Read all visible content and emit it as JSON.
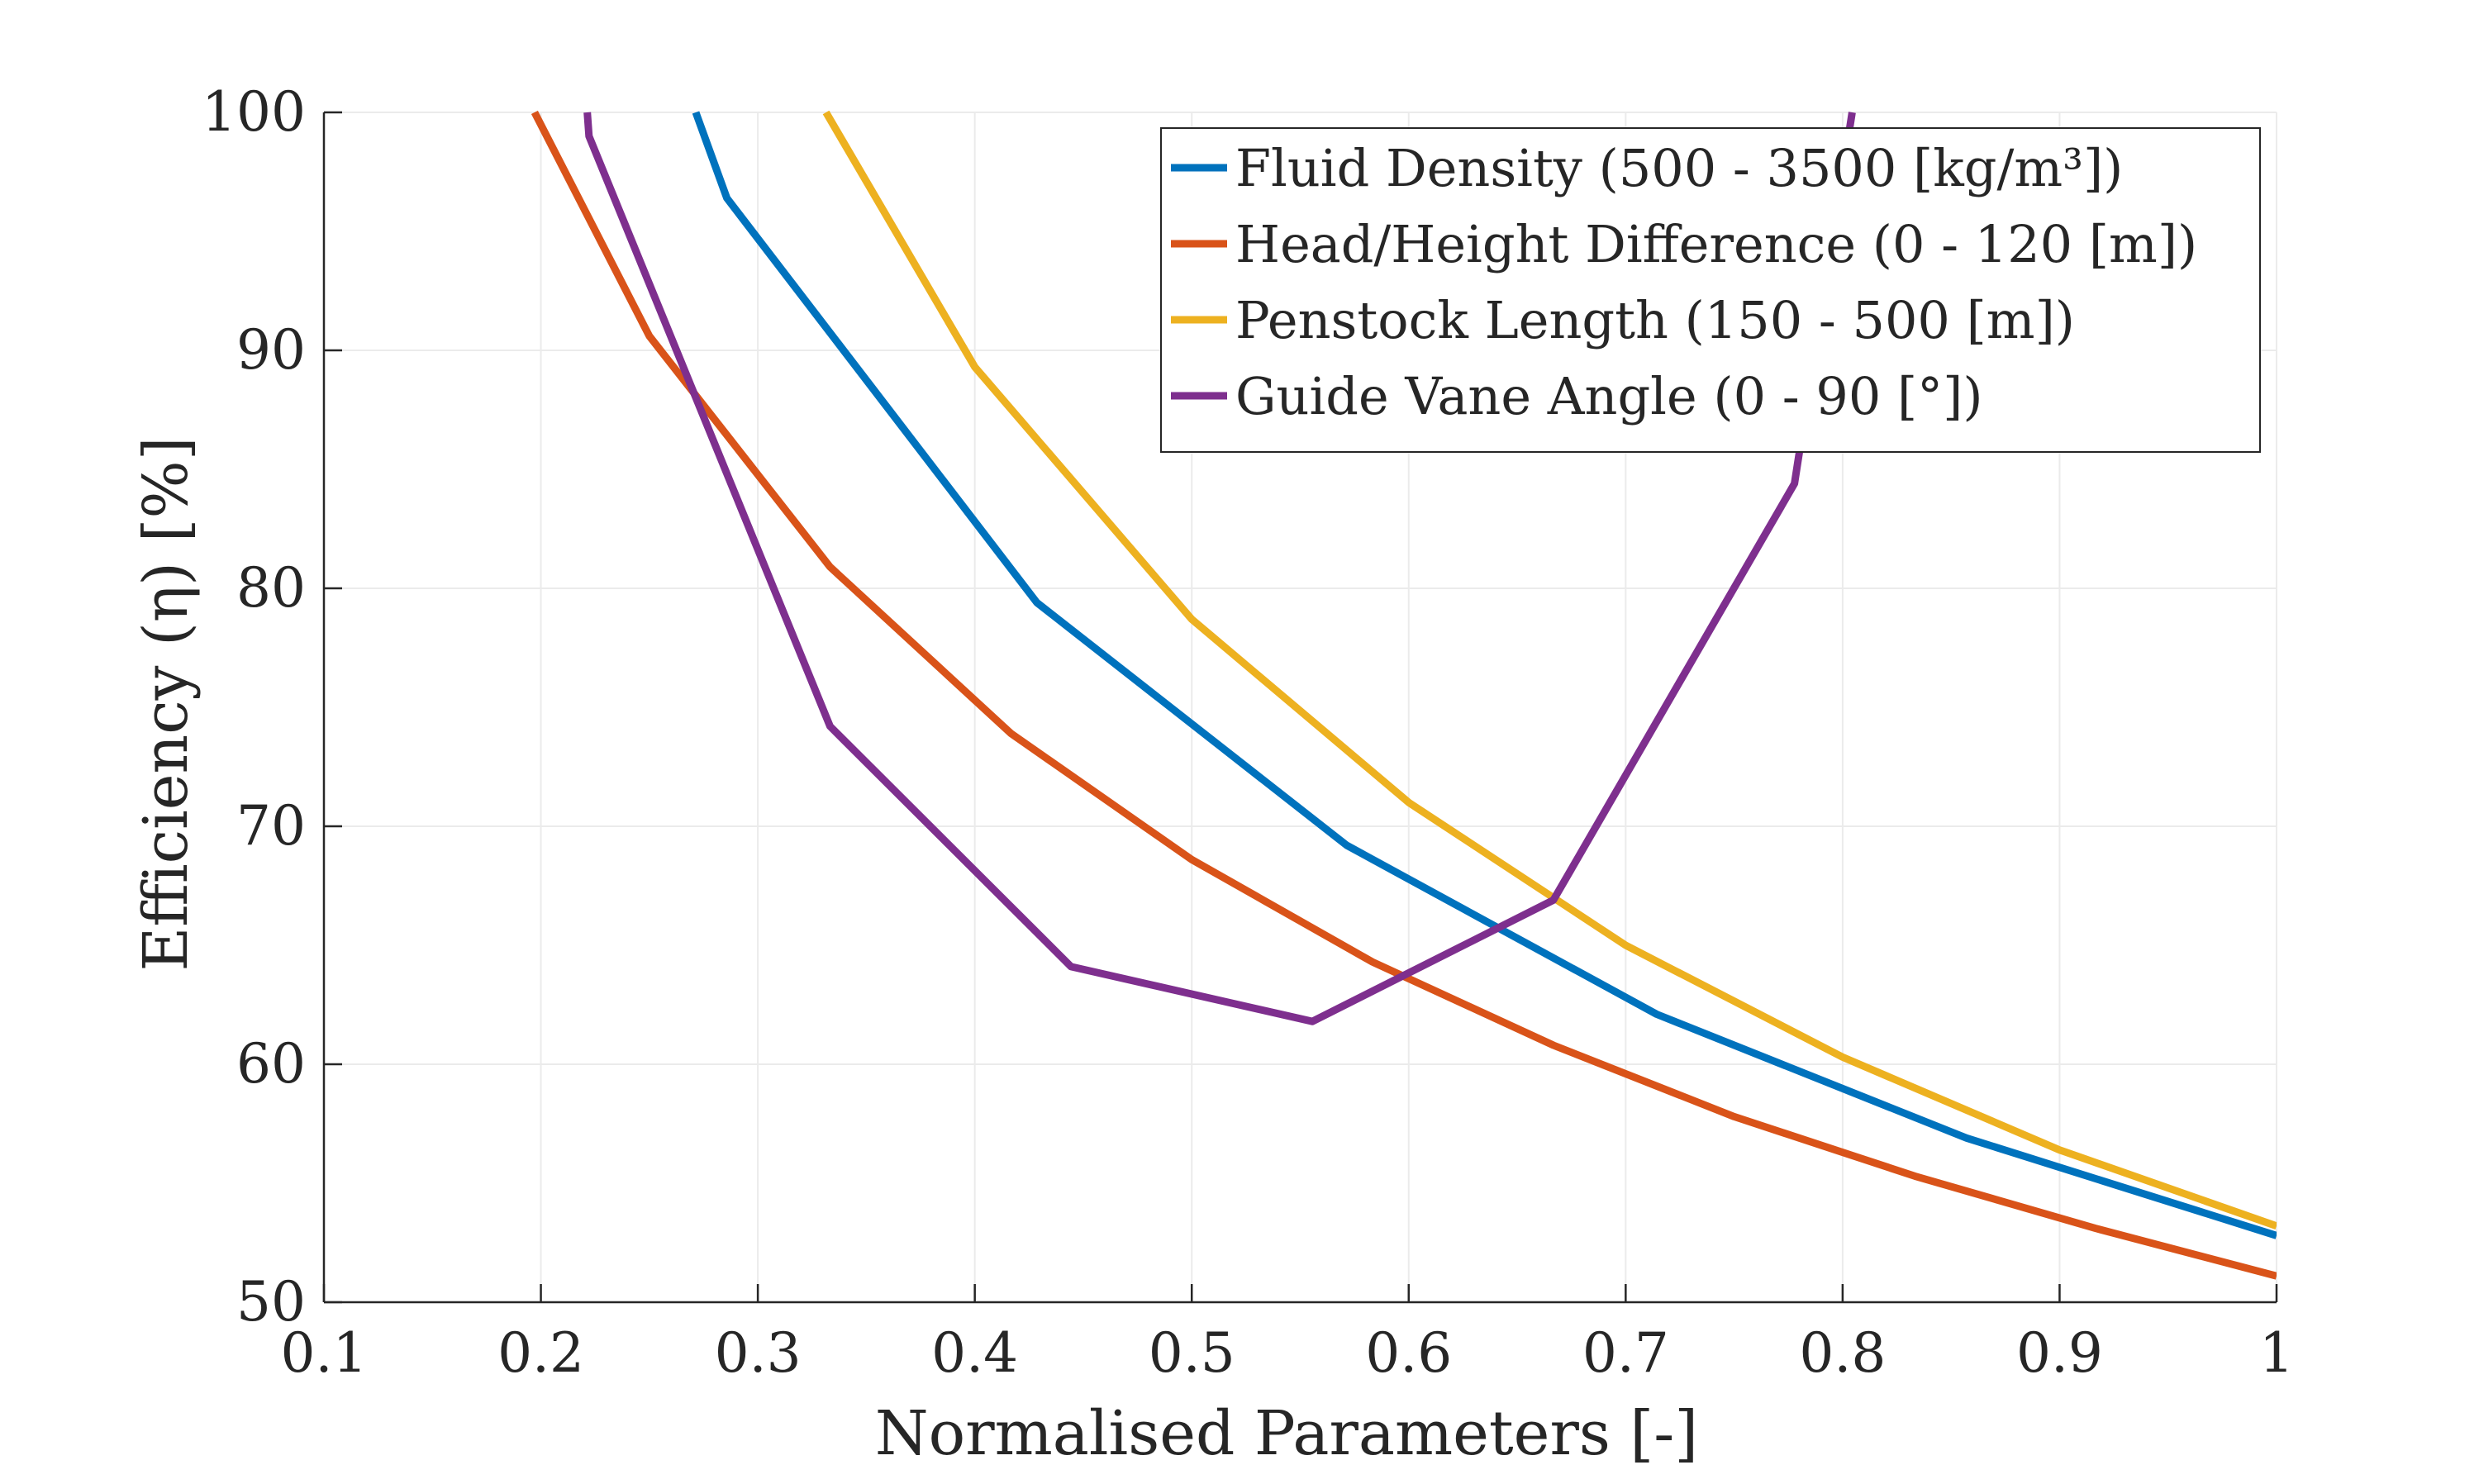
{
  "chart_data": {
    "type": "line",
    "title": "",
    "xlabel": "Normalised Parameters [-]",
    "ylabel": "Efficiency (η) [%]",
    "xlim": [
      0.1,
      1
    ],
    "ylim": [
      50,
      100
    ],
    "xticks": [
      "0.1",
      "0.2",
      "0.3",
      "0.4",
      "0.5",
      "0.6",
      "0.7",
      "0.8",
      "0.9",
      "1"
    ],
    "yticks": [
      "50",
      "60",
      "70",
      "80",
      "90",
      "100"
    ],
    "grid": true,
    "legend_position": "top-right",
    "series": [
      {
        "name": "Fluid Density (500 - 3500 [kg/m³])",
        "color": "#0072BD",
        "x": [
          0.2714,
          0.2857,
          0.4286,
          0.5714,
          0.7143,
          0.8571,
          1.0
        ],
        "y": [
          100.0,
          96.4,
          79.4,
          69.2,
          62.1,
          56.9,
          52.8
        ]
      },
      {
        "name": "Head/Height Difference (0 - 120 [m])",
        "color": "#D95319",
        "x": [
          0.1971,
          0.25,
          0.3333,
          0.4167,
          0.5,
          0.5833,
          0.6667,
          0.75,
          0.8333,
          0.9167,
          1.0
        ],
        "y": [
          100.0,
          90.6,
          80.9,
          73.9,
          68.6,
          64.3,
          60.8,
          57.8,
          55.3,
          53.1,
          51.1
        ]
      },
      {
        "name": "Penstock Length (150 - 500 [m])",
        "color": "#EDB120",
        "x": [
          0.3314,
          0.4,
          0.5,
          0.6,
          0.7,
          0.8,
          0.9,
          1.0
        ],
        "y": [
          100.0,
          89.3,
          78.7,
          71.0,
          65.0,
          60.3,
          56.4,
          53.2
        ]
      },
      {
        "name": "Guide Vane Angle (0 - 90 [°])",
        "color": "#7E2F8E",
        "x": [
          0.2214,
          0.2222,
          0.3333,
          0.4444,
          0.5556,
          0.6667,
          0.7778,
          0.8044
        ],
        "y": [
          100.0,
          99.0,
          74.2,
          64.1,
          61.8,
          66.9,
          84.4,
          100.0
        ]
      }
    ]
  }
}
